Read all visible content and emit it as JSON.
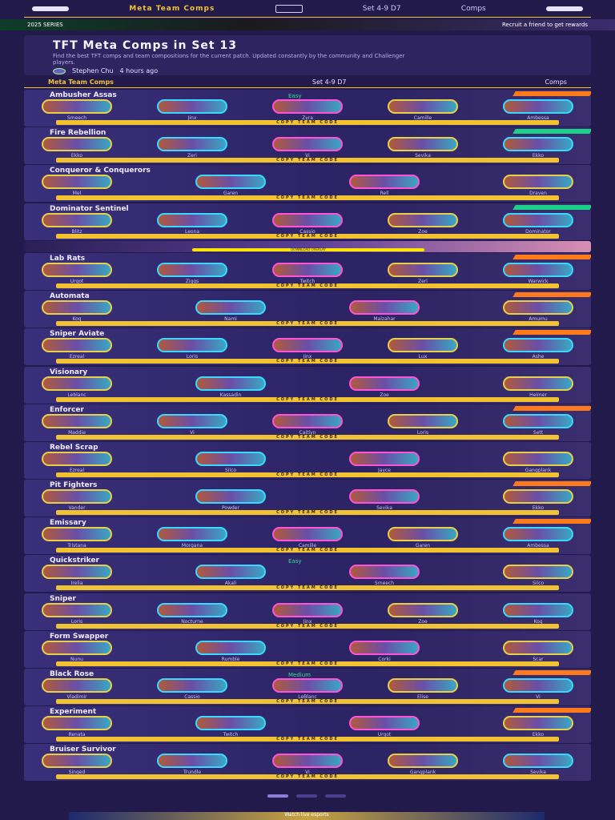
{
  "nav": {
    "crumb": "Meta Team Comps",
    "set": "Set 4-9 D7",
    "right": "Comps"
  },
  "banner": {
    "left": "2025 SERIES",
    "right": "Recruit a friend to get rewards"
  },
  "hero": {
    "title": "TFT Meta Comps in Set 13",
    "desc": "Find the best TFT comps and team compositions for the current patch. Updated constantly by the community and Challenger players.",
    "author": "Stephen Chu",
    "updated": "4 hours ago"
  },
  "subnav": {
    "label": "Meta Team Comps",
    "set": "Set 4-9 D7",
    "right": "Comps"
  },
  "copy_label": "COPY TEAM CODE",
  "ad": {
    "text": "DOWNLOAD OVERLAY"
  },
  "comps": [
    {
      "name": "Ambusher Assas",
      "tier": "Easy",
      "ribbon": "orange",
      "champs": [
        "Smeech",
        "Jinx",
        "Zyra",
        "Camille",
        "Ambessa"
      ]
    },
    {
      "name": "Fire Rebellion",
      "tier": "",
      "ribbon": "green",
      "champs": [
        "Ekko",
        "Zeri",
        "Vi",
        "Sevika",
        "Ekko"
      ]
    },
    {
      "name": "Conqueror & Conquerors",
      "tier": "",
      "ribbon": "",
      "champs": [
        "Mel",
        "Garen",
        "Rell",
        "Draven"
      ]
    },
    {
      "name": "Dominator Sentinel",
      "tier": "",
      "ribbon": "green",
      "champs": [
        "Blitz",
        "Leona",
        "Cassio",
        "Zoe",
        "Dominator"
      ]
    },
    {
      "name": "Lab Rats",
      "tier": "",
      "ribbon": "orange",
      "champs": [
        "Urgot",
        "Ziggs",
        "Twitch",
        "Zeri",
        "Warwick"
      ]
    },
    {
      "name": "Automata",
      "tier": "",
      "ribbon": "orange",
      "champs": [
        "Kog",
        "Nami",
        "Malzahar",
        "Amumu"
      ]
    },
    {
      "name": "Sniper Aviate",
      "tier": "",
      "ribbon": "orange",
      "champs": [
        "Ezreal",
        "Loris",
        "Jinx",
        "Lux",
        "Ashe"
      ]
    },
    {
      "name": "Visionary",
      "tier": "",
      "ribbon": "",
      "champs": [
        "Leblanc",
        "Kassadin",
        "Zoe",
        "Heimer"
      ]
    },
    {
      "name": "Enforcer",
      "tier": "",
      "ribbon": "orange",
      "champs": [
        "Maddie",
        "Vi",
        "Caitlyn",
        "Loris",
        "Sett"
      ]
    },
    {
      "name": "Rebel Scrap",
      "tier": "",
      "ribbon": "",
      "champs": [
        "Ezreal",
        "Silco",
        "Jayce",
        "Gangplank"
      ]
    },
    {
      "name": "Pit Fighters",
      "tier": "",
      "ribbon": "orange",
      "champs": [
        "Vander",
        "Powder",
        "Sevika",
        "Ekko"
      ]
    },
    {
      "name": "Emissary",
      "tier": "",
      "ribbon": "orange",
      "champs": [
        "Tristana",
        "Morgana",
        "Camille",
        "Garen",
        "Ambessa"
      ]
    },
    {
      "name": "Quickstriker",
      "tier": "Easy",
      "ribbon": "",
      "champs": [
        "Irelia",
        "Akali",
        "Smeech",
        "Silco"
      ]
    },
    {
      "name": "Sniper",
      "tier": "",
      "ribbon": "",
      "champs": [
        "Loris",
        "Nocturne",
        "Jinx",
        "Zoe",
        "Kog"
      ]
    },
    {
      "name": "Form Swapper",
      "tier": "",
      "ribbon": "",
      "champs": [
        "Nunu",
        "Rumble",
        "Corki",
        "Scar"
      ]
    },
    {
      "name": "Black Rose",
      "tier": "Medium",
      "ribbon": "orange",
      "champs": [
        "Vladimir",
        "Cassio",
        "LeBlanc",
        "Elise",
        "Vi"
      ]
    },
    {
      "name": "Experiment",
      "tier": "",
      "ribbon": "orange",
      "champs": [
        "Renata",
        "Twitch",
        "Urgot",
        "Ekko"
      ]
    },
    {
      "name": "Bruiser Survivor",
      "tier": "",
      "ribbon": "",
      "champs": [
        "Singed",
        "Trundle",
        "Vi",
        "Gangplank",
        "Sevika"
      ]
    }
  ],
  "footer": {
    "text": "Watch live esports"
  }
}
